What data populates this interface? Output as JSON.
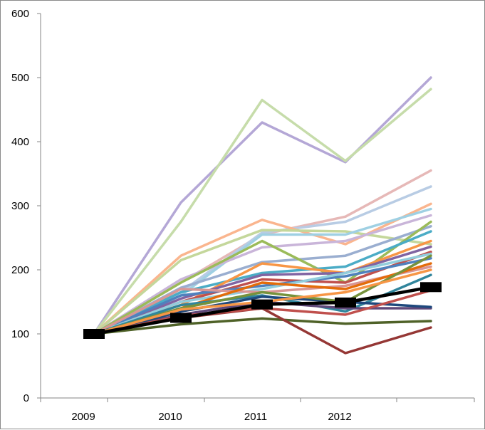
{
  "chart_data": {
    "type": "line",
    "title": "",
    "xlabel": "",
    "ylabel": "",
    "categories": [
      "2009",
      "2010",
      "2011",
      "2012",
      ""
    ],
    "ylim": [
      0,
      600
    ],
    "y_ticks": [
      0,
      100,
      200,
      300,
      400,
      500,
      600
    ],
    "grid": false,
    "legend": "none",
    "series": [
      {
        "color": "#b4a7d6",
        "values": [
          100,
          305,
          430,
          368,
          500
        ]
      },
      {
        "color": "#c6dcaa",
        "values": [
          100,
          275,
          465,
          370,
          482
        ]
      },
      {
        "color": "#e6b8b7",
        "values": [
          100,
          180,
          255,
          283,
          355
        ]
      },
      {
        "color": "#b8cce4",
        "values": [
          100,
          165,
          258,
          275,
          330
        ]
      },
      {
        "color": "#fab58e",
        "values": [
          100,
          222,
          278,
          240,
          303
        ]
      },
      {
        "color": "#c4d79b",
        "values": [
          100,
          215,
          262,
          260,
          240
        ]
      },
      {
        "color": "#9fd0e3",
        "values": [
          100,
          160,
          255,
          255,
          295
        ]
      },
      {
        "color": "#c9b5d9",
        "values": [
          100,
          185,
          235,
          245,
          285
        ]
      },
      {
        "color": "#9aaed0",
        "values": [
          100,
          172,
          212,
          222,
          268
        ]
      },
      {
        "color": "#9bbb59",
        "values": [
          100,
          180,
          245,
          180,
          275
        ]
      },
      {
        "color": "#4bacc6",
        "values": [
          100,
          165,
          195,
          205,
          260
        ]
      },
      {
        "color": "#f79646",
        "values": [
          100,
          145,
          210,
          195,
          245
        ]
      },
      {
        "color": "#8064a2",
        "values": [
          100,
          155,
          192,
          195,
          236
        ]
      },
      {
        "color": "#c0504d",
        "values": [
          100,
          150,
          185,
          180,
          228
        ]
      },
      {
        "color": "#4f81bd",
        "values": [
          100,
          160,
          175,
          190,
          218
        ]
      },
      {
        "color": "#92cddc",
        "values": [
          100,
          150,
          170,
          195,
          225
        ]
      },
      {
        "color": "#d99694",
        "values": [
          100,
          170,
          165,
          175,
          205
        ]
      },
      {
        "color": "#e46c0a",
        "values": [
          100,
          140,
          180,
          170,
          210
        ]
      },
      {
        "color": "#31859c",
        "values": [
          100,
          145,
          160,
          135,
          192
        ]
      },
      {
        "color": "#60497a",
        "values": [
          100,
          130,
          150,
          140,
          140
        ]
      },
      {
        "color": "#1f497d",
        "values": [
          100,
          135,
          158,
          150,
          142
        ]
      },
      {
        "color": "#76923c",
        "values": [
          100,
          140,
          165,
          150,
          222
        ]
      },
      {
        "color": "#4f6228",
        "values": [
          100,
          115,
          124,
          116,
          120
        ]
      },
      {
        "color": "#953735",
        "values": [
          100,
          125,
          140,
          70,
          110
        ]
      },
      {
        "color": "#c0504d",
        "values": [
          100,
          128,
          140,
          130,
          168
        ]
      },
      {
        "color": "#f79646",
        "values": [
          100,
          138,
          150,
          165,
          200
        ]
      },
      {
        "color": "#000000",
        "values": [
          100,
          125,
          146,
          149,
          173
        ]
      }
    ]
  }
}
